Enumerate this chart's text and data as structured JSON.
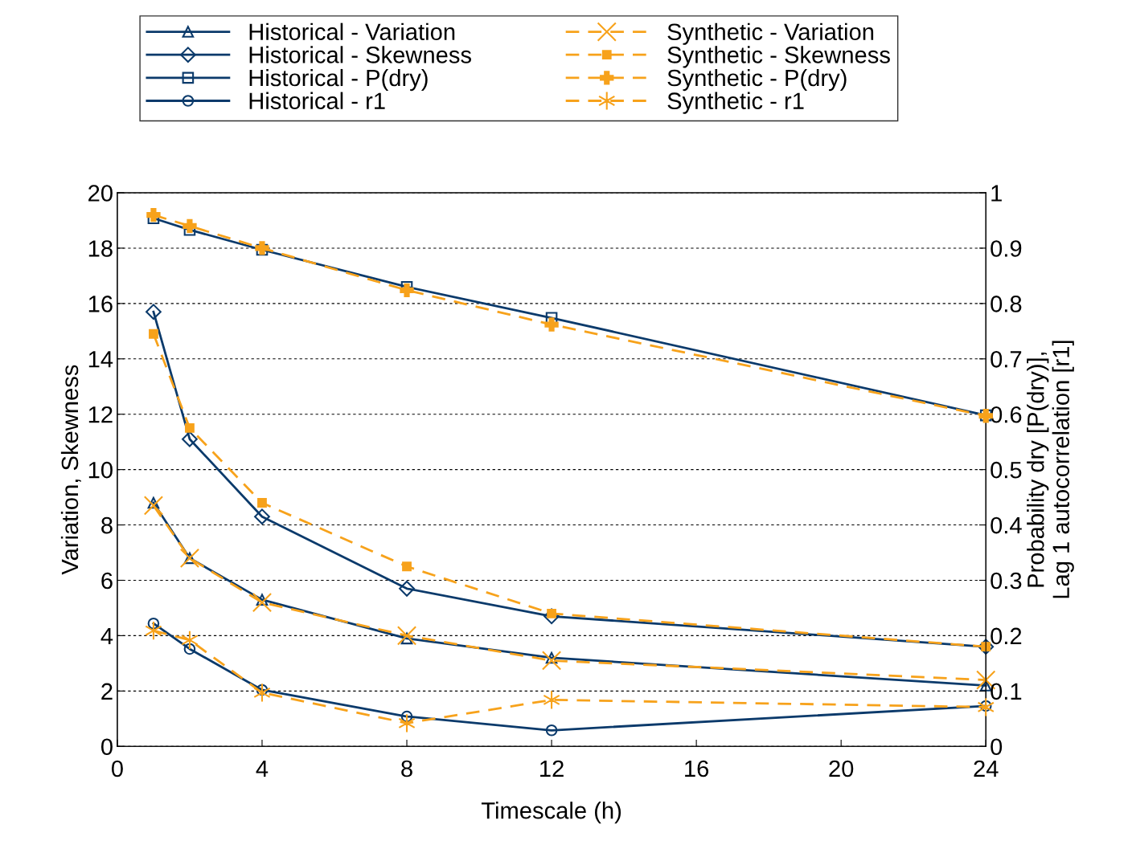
{
  "chart_data": {
    "type": "line",
    "xlabel": "Timescale (h)",
    "ylabel": "Variation, Skewness",
    "y2label": "Probability dry [P(dry)],\nLag 1 autocorrelation [r1]",
    "x": [
      1,
      2,
      4,
      8,
      12,
      24
    ],
    "xlim": [
      0,
      24
    ],
    "xticks": [
      0,
      4,
      8,
      12,
      16,
      20,
      24
    ],
    "ylim": [
      0,
      20
    ],
    "yticks": [
      0,
      2,
      4,
      6,
      8,
      10,
      12,
      14,
      16,
      18,
      20
    ],
    "y2lim": [
      0,
      1
    ],
    "y2ticks": [
      0,
      0.1,
      0.2,
      0.3,
      0.4,
      0.5,
      0.6,
      0.7,
      0.8,
      0.9,
      1
    ],
    "grid": "y",
    "legend": "top",
    "series": [
      {
        "name": "Historical - Variation",
        "color": "#0b3a6b",
        "marker": "triangle",
        "line_style": "solid",
        "values": [
          8.8,
          6.8,
          5.3,
          3.9,
          3.2,
          2.2
        ]
      },
      {
        "name": "Historical - Skewness",
        "color": "#0b3a6b",
        "marker": "diamond",
        "line_style": "solid",
        "values": [
          15.7,
          11.1,
          8.3,
          5.7,
          4.7,
          3.6
        ]
      },
      {
        "name": "Historical - P(dry)",
        "color": "#0b3a6b",
        "marker": "square",
        "line_style": "solid",
        "axis": "y2",
        "values": [
          0.954,
          0.933,
          0.897,
          0.83,
          0.774,
          0.598
        ]
      },
      {
        "name": "Historical - r1",
        "color": "#0b3a6b",
        "marker": "circle",
        "line_style": "solid",
        "axis": "y2",
        "values": [
          0.222,
          0.176,
          0.102,
          0.054,
          0.029,
          0.073
        ]
      },
      {
        "name": "Synthetic - Variation",
        "color": "#f7a21b",
        "marker": "cross",
        "line_style": "dashed",
        "values": [
          8.7,
          6.8,
          5.2,
          4.0,
          3.1,
          2.4
        ]
      },
      {
        "name": "Synthetic - Skewness",
        "color": "#f7a21b",
        "marker": "square",
        "line_style": "dashed",
        "values": [
          14.9,
          11.5,
          8.8,
          6.5,
          4.8,
          3.6
        ]
      },
      {
        "name": "Synthetic - P(dry)",
        "color": "#f7a21b",
        "marker": "cross",
        "line_style": "dashed",
        "axis": "y2",
        "values": [
          0.96,
          0.94,
          0.9,
          0.824,
          0.762,
          0.597
        ]
      },
      {
        "name": "Synthetic - r1",
        "color": "#f7a21b",
        "marker": "cross",
        "line_style": "dashed",
        "axis": "y2",
        "values": [
          0.209,
          0.192,
          0.097,
          0.042,
          0.084,
          0.071
        ]
      }
    ]
  }
}
